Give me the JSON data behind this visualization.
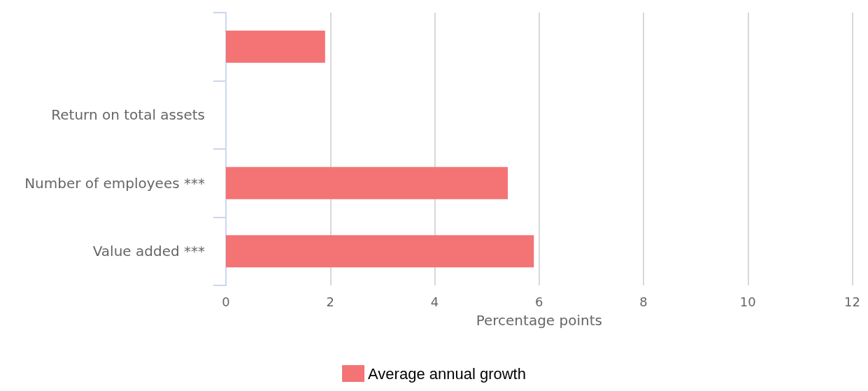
{
  "chart_data": {
    "type": "bar",
    "orientation": "horizontal",
    "xlabel": "Percentage points",
    "categories": [
      null,
      "Return on total assets",
      "Number of employees ***",
      "Value added ***"
    ],
    "series": [
      {
        "name": "Average annual growth",
        "color": "#f47374",
        "values": [
          1.9,
          null,
          5.4,
          5.9
        ]
      }
    ],
    "xlim": [
      0,
      12
    ],
    "xticks": [
      0,
      2,
      4,
      6,
      8,
      10,
      12
    ],
    "grid": "x",
    "legend": "bottom"
  }
}
